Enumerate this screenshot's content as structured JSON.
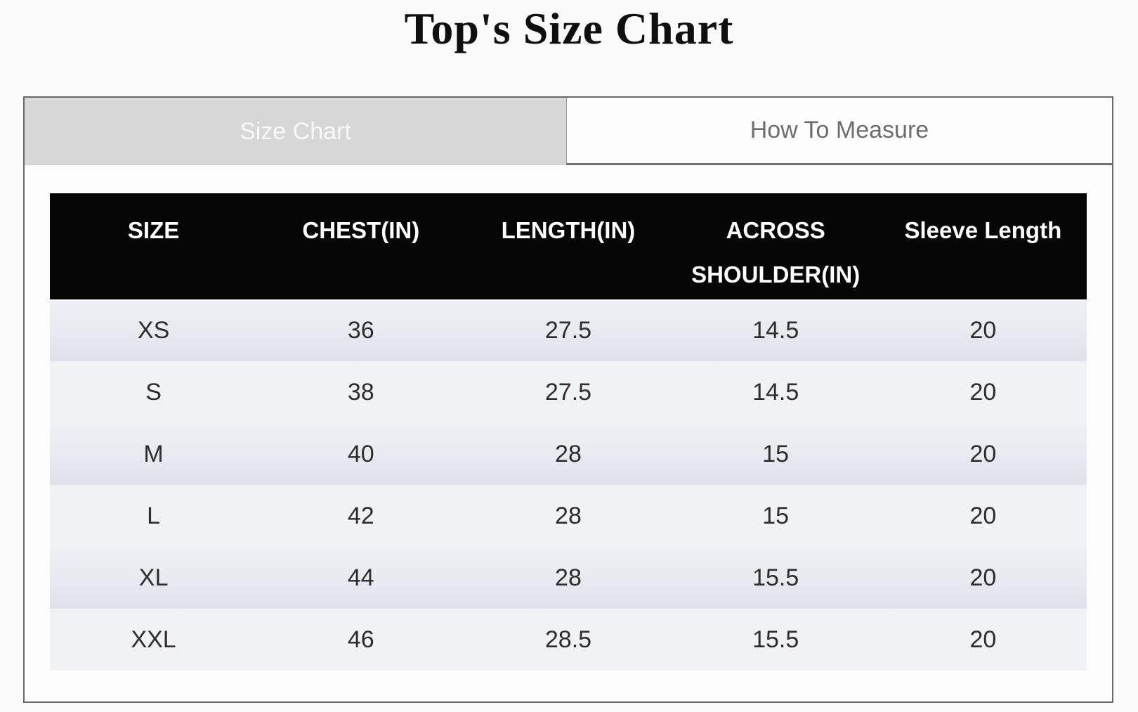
{
  "page": {
    "title": "Top's Size Chart"
  },
  "tabs": [
    {
      "label": "Size Chart",
      "active": true
    },
    {
      "label": "How To Measure",
      "active": false
    }
  ],
  "size_table": {
    "columns": [
      "SIZE",
      "CHEST(IN)",
      "LENGTH(IN)",
      "ACROSS SHOULDER(IN)",
      "Sleeve Length"
    ],
    "rows": [
      {
        "size": "XS",
        "chest": "36",
        "length": "27.5",
        "shoulder": "14.5",
        "sleeve": "20"
      },
      {
        "size": "S",
        "chest": "38",
        "length": "27.5",
        "shoulder": "14.5",
        "sleeve": "20"
      },
      {
        "size": "M",
        "chest": "40",
        "length": "28",
        "shoulder": "15",
        "sleeve": "20"
      },
      {
        "size": "L",
        "chest": "42",
        "length": "28",
        "shoulder": "15",
        "sleeve": "20"
      },
      {
        "size": "XL",
        "chest": "44",
        "length": "28",
        "shoulder": "15.5",
        "sleeve": "20"
      },
      {
        "size": "XXL",
        "chest": "46",
        "length": "28.5",
        "shoulder": "15.5",
        "sleeve": "20"
      }
    ]
  },
  "colors": {
    "page_background": "#fafafa",
    "container_border": "#6a6a6a",
    "active_tab_background": "#d7d7d7",
    "active_tab_text": "#f8f8f8",
    "inactive_tab_text": "#6d6d6d",
    "header_background": "#060606",
    "header_text": "#fdfdfd",
    "odd_row_background": "#e4e7ee",
    "even_row_background": "#f1f2f6",
    "cell_text": "#2d2d2d"
  }
}
